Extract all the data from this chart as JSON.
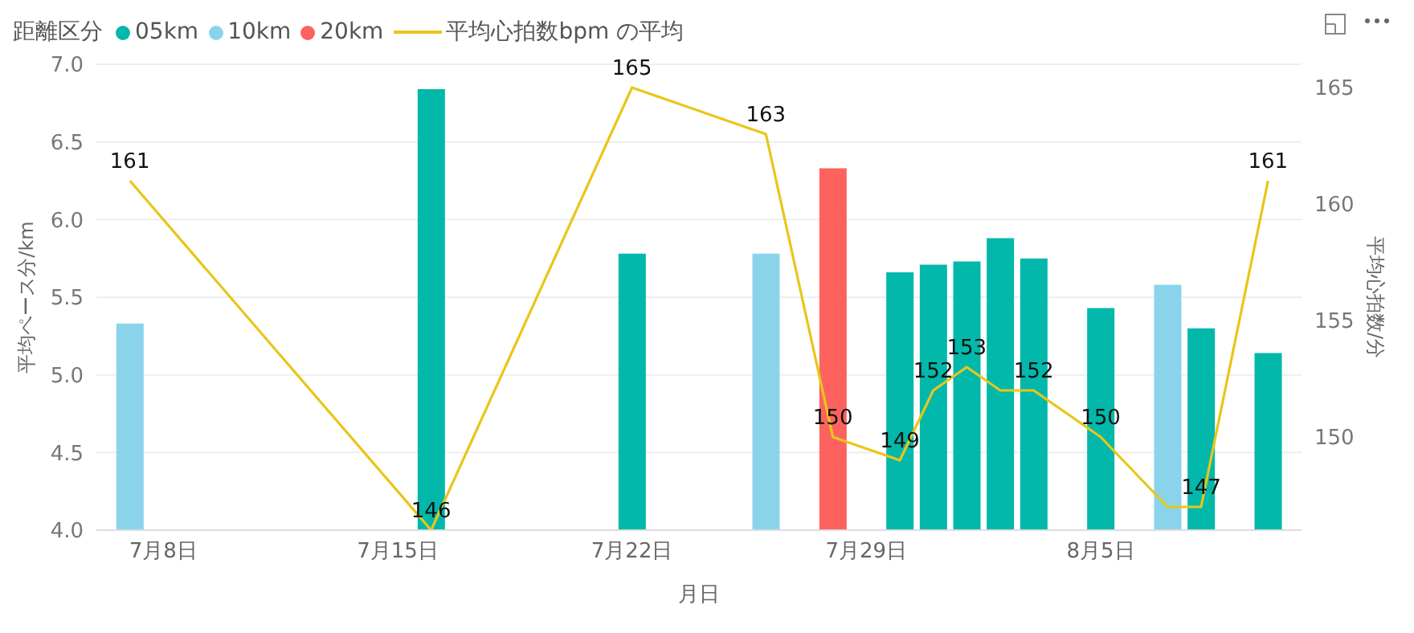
{
  "chart_data": {
    "type": "bar",
    "legend_title": "距離区分",
    "xlabel": "月日",
    "ylabel": "平均ペース分/km",
    "y2label": "平均心拍数/分",
    "x": [
      "--07-07",
      "--07-16",
      "--07-22",
      "--07-26",
      "--07-28",
      "--07-30",
      "--07-31",
      "--08-01",
      "--08-02",
      "--08-03",
      "--08-05",
      "--08-07",
      "--08-08",
      "--08-10"
    ],
    "xlim": [
      "--07-06",
      "--08-11"
    ],
    "xticks": [
      {
        "value": "--07-08",
        "label": "7月8日"
      },
      {
        "value": "--07-15",
        "label": "7月15日"
      },
      {
        "value": "--07-22",
        "label": "7月22日"
      },
      {
        "value": "--07-29",
        "label": "7月29日"
      },
      {
        "value": "--08-05",
        "label": "8月5日"
      }
    ],
    "ylim": [
      4,
      7
    ],
    "yticks": [
      {
        "value": 4,
        "label": "4.0"
      },
      {
        "value": 4.5,
        "label": "4.5"
      },
      {
        "value": 5,
        "label": "5.0"
      },
      {
        "value": 5.5,
        "label": "5.5"
      },
      {
        "value": 6,
        "label": "6.0"
      },
      {
        "value": 6.5,
        "label": "6.5"
      },
      {
        "value": 7,
        "label": "7.0"
      }
    ],
    "y2lim": [
      146,
      166
    ],
    "y2ticks": [
      150,
      155,
      160,
      165
    ],
    "grid": "y",
    "legend": "top left",
    "series": [
      {
        "name": "05km",
        "color": "#01b8aa",
        "values": [
          null,
          6.84,
          5.78,
          null,
          null,
          5.66,
          5.71,
          5.73,
          5.88,
          5.75,
          5.43,
          null,
          5.3,
          5.14
        ]
      },
      {
        "name": "10km",
        "color": "#8ad4eb",
        "values": [
          5.33,
          null,
          null,
          5.78,
          null,
          null,
          null,
          null,
          null,
          null,
          null,
          5.58,
          null,
          null
        ]
      },
      {
        "name": "20km",
        "color": "#fd625e",
        "values": [
          null,
          null,
          null,
          null,
          6.33,
          null,
          null,
          null,
          null,
          null,
          null,
          null,
          null,
          null
        ]
      },
      {
        "name": "平均心拍数bpm の平均",
        "type": "line",
        "axis": "y2",
        "color": "#e8c61a",
        "marker": "none",
        "values": [
          161,
          146,
          165,
          163,
          150,
          149,
          152,
          153,
          152,
          152,
          150,
          147,
          147,
          161
        ],
        "value_labels": [
          "161",
          "146",
          "165",
          "163",
          "150",
          "149",
          "152",
          "153",
          null,
          "152",
          "150",
          null,
          "147",
          "161"
        ]
      }
    ]
  }
}
